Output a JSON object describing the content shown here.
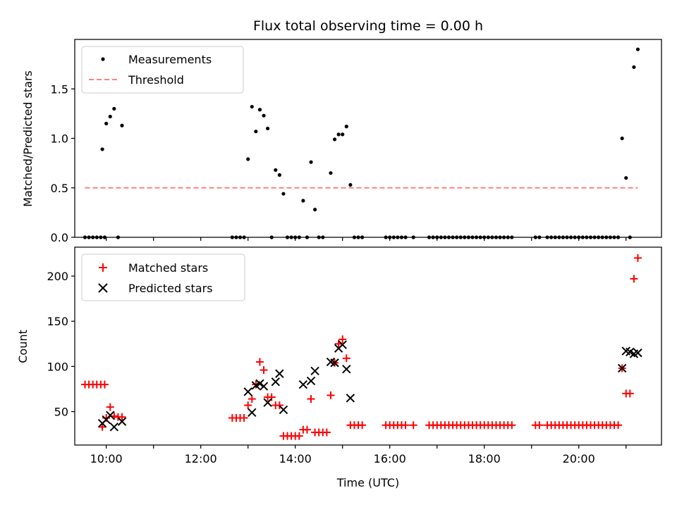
{
  "chart_data": [
    {
      "type": "scatter",
      "title": "Flux total observing time = 0.00 h",
      "ylabel": "Matched/Predicted stars",
      "xlim": [
        "09:20",
        "21:45"
      ],
      "ylim": [
        0,
        2.0
      ],
      "y_ticks": [
        "0.0",
        "0.5",
        "1.0",
        "1.5"
      ],
      "legend_position": "upper-left",
      "grid": false,
      "series": [
        {
          "name": "Measurements",
          "marker": "dot",
          "color": "#000000",
          "points": [
            [
              "09:33",
              0
            ],
            [
              "09:38",
              0
            ],
            [
              "09:43",
              0
            ],
            [
              "09:48",
              0
            ],
            [
              "09:53",
              0
            ],
            [
              "09:58",
              0
            ],
            [
              "09:55",
              0.89
            ],
            [
              "10:00",
              1.15
            ],
            [
              "10:05",
              1.22
            ],
            [
              "10:10",
              1.3
            ],
            [
              "10:15",
              0
            ],
            [
              "10:20",
              1.13
            ],
            [
              "12:40",
              0
            ],
            [
              "12:45",
              0
            ],
            [
              "12:50",
              0
            ],
            [
              "12:55",
              0
            ],
            [
              "13:00",
              0.79
            ],
            [
              "13:05",
              1.32
            ],
            [
              "13:10",
              1.07
            ],
            [
              "13:15",
              1.29
            ],
            [
              "13:20",
              1.23
            ],
            [
              "13:25",
              1.1
            ],
            [
              "13:30",
              0
            ],
            [
              "13:35",
              0.68
            ],
            [
              "13:40",
              0.63
            ],
            [
              "13:45",
              0.44
            ],
            [
              "13:50",
              0
            ],
            [
              "13:55",
              0
            ],
            [
              "14:00",
              0
            ],
            [
              "14:05",
              0
            ],
            [
              "14:10",
              0.37
            ],
            [
              "14:15",
              0
            ],
            [
              "14:20",
              0.76
            ],
            [
              "14:25",
              0.28
            ],
            [
              "14:30",
              0
            ],
            [
              "14:35",
              0
            ],
            [
              "14:45",
              0.65
            ],
            [
              "14:50",
              0.99
            ],
            [
              "14:55",
              1.04
            ],
            [
              "15:00",
              1.04
            ],
            [
              "15:05",
              1.12
            ],
            [
              "15:10",
              0.53
            ],
            [
              "15:15",
              0
            ],
            [
              "15:20",
              0
            ],
            [
              "15:25",
              0
            ],
            [
              "15:55",
              0
            ],
            [
              "16:00",
              0
            ],
            [
              "16:05",
              0
            ],
            [
              "16:10",
              0
            ],
            [
              "16:15",
              0
            ],
            [
              "16:20",
              0
            ],
            [
              "16:30",
              0
            ],
            [
              "16:50",
              0
            ],
            [
              "16:55",
              0
            ],
            [
              "17:00",
              0
            ],
            [
              "17:05",
              0
            ],
            [
              "17:10",
              0
            ],
            [
              "17:15",
              0
            ],
            [
              "17:20",
              0
            ],
            [
              "17:25",
              0
            ],
            [
              "17:30",
              0
            ],
            [
              "17:35",
              0
            ],
            [
              "17:40",
              0
            ],
            [
              "17:45",
              0
            ],
            [
              "17:50",
              0
            ],
            [
              "17:55",
              0
            ],
            [
              "18:00",
              0
            ],
            [
              "18:05",
              0
            ],
            [
              "18:10",
              0
            ],
            [
              "18:15",
              0
            ],
            [
              "18:20",
              0
            ],
            [
              "18:25",
              0
            ],
            [
              "18:30",
              0
            ],
            [
              "18:35",
              0
            ],
            [
              "19:05",
              0
            ],
            [
              "19:10",
              0
            ],
            [
              "19:20",
              0
            ],
            [
              "19:25",
              0
            ],
            [
              "19:30",
              0
            ],
            [
              "19:35",
              0
            ],
            [
              "19:40",
              0
            ],
            [
              "19:45",
              0
            ],
            [
              "19:50",
              0
            ],
            [
              "19:55",
              0
            ],
            [
              "20:00",
              0
            ],
            [
              "20:05",
              0
            ],
            [
              "20:10",
              0
            ],
            [
              "20:15",
              0
            ],
            [
              "20:20",
              0
            ],
            [
              "20:25",
              0
            ],
            [
              "20:30",
              0
            ],
            [
              "20:35",
              0
            ],
            [
              "20:40",
              0
            ],
            [
              "20:45",
              0
            ],
            [
              "20:50",
              0
            ],
            [
              "20:55",
              1.0
            ],
            [
              "21:00",
              0.6
            ],
            [
              "21:05",
              0
            ],
            [
              "21:10",
              1.72
            ],
            [
              "21:15",
              1.9
            ]
          ]
        },
        {
          "name": "Threshold",
          "marker": "dashed-line",
          "color": "#ff8080",
          "points": [
            [
              "09:33",
              0.5
            ],
            [
              "21:15",
              0.5
            ]
          ]
        }
      ]
    },
    {
      "type": "scatter",
      "xlabel": "Time (UTC)",
      "ylabel": "Count",
      "xlim": [
        "09:20",
        "21:45"
      ],
      "ylim": [
        13,
        232
      ],
      "x_ticks": [
        "10:00",
        "12:00",
        "14:00",
        "16:00",
        "18:00",
        "20:00"
      ],
      "y_ticks": [
        "50",
        "100",
        "150",
        "200"
      ],
      "legend_position": "upper-left",
      "grid": false,
      "series": [
        {
          "name": "Matched stars",
          "marker": "plus",
          "color": "#ff0000",
          "points": [
            [
              "09:33",
              80
            ],
            [
              "09:38",
              80
            ],
            [
              "09:43",
              80
            ],
            [
              "09:48",
              80
            ],
            [
              "09:53",
              80
            ],
            [
              "09:58",
              80
            ],
            [
              "09:55",
              33
            ],
            [
              "10:00",
              43
            ],
            [
              "10:05",
              55
            ],
            [
              "10:10",
              45
            ],
            [
              "10:15",
              44
            ],
            [
              "10:20",
              44
            ],
            [
              "12:40",
              43
            ],
            [
              "12:45",
              43
            ],
            [
              "12:50",
              43
            ],
            [
              "12:55",
              43
            ],
            [
              "13:00",
              57
            ],
            [
              "13:05",
              64
            ],
            [
              "13:10",
              80
            ],
            [
              "13:15",
              105
            ],
            [
              "13:20",
              96
            ],
            [
              "13:25",
              66
            ],
            [
              "13:30",
              66
            ],
            [
              "13:35",
              57
            ],
            [
              "13:40",
              57
            ],
            [
              "13:45",
              23
            ],
            [
              "13:50",
              23
            ],
            [
              "13:55",
              23
            ],
            [
              "14:00",
              23
            ],
            [
              "14:05",
              23
            ],
            [
              "14:10",
              30
            ],
            [
              "14:15",
              30
            ],
            [
              "14:20",
              64
            ],
            [
              "14:25",
              27
            ],
            [
              "14:30",
              27
            ],
            [
              "14:35",
              27
            ],
            [
              "14:40",
              27
            ],
            [
              "14:45",
              68
            ],
            [
              "14:50",
              104
            ],
            [
              "14:55",
              125
            ],
            [
              "15:00",
              130
            ],
            [
              "15:05",
              109
            ],
            [
              "15:10",
              35
            ],
            [
              "15:15",
              35
            ],
            [
              "15:20",
              35
            ],
            [
              "15:25",
              35
            ],
            [
              "15:55",
              35
            ],
            [
              "16:00",
              35
            ],
            [
              "16:05",
              35
            ],
            [
              "16:10",
              35
            ],
            [
              "16:15",
              35
            ],
            [
              "16:20",
              35
            ],
            [
              "16:30",
              35
            ],
            [
              "16:50",
              35
            ],
            [
              "16:55",
              35
            ],
            [
              "17:00",
              35
            ],
            [
              "17:05",
              35
            ],
            [
              "17:10",
              35
            ],
            [
              "17:15",
              35
            ],
            [
              "17:20",
              35
            ],
            [
              "17:25",
              35
            ],
            [
              "17:30",
              35
            ],
            [
              "17:35",
              35
            ],
            [
              "17:40",
              35
            ],
            [
              "17:45",
              35
            ],
            [
              "17:50",
              35
            ],
            [
              "17:55",
              35
            ],
            [
              "18:00",
              35
            ],
            [
              "18:05",
              35
            ],
            [
              "18:10",
              35
            ],
            [
              "18:15",
              35
            ],
            [
              "18:20",
              35
            ],
            [
              "18:25",
              35
            ],
            [
              "18:30",
              35
            ],
            [
              "18:35",
              35
            ],
            [
              "19:05",
              35
            ],
            [
              "19:10",
              35
            ],
            [
              "19:20",
              35
            ],
            [
              "19:25",
              35
            ],
            [
              "19:30",
              35
            ],
            [
              "19:35",
              35
            ],
            [
              "19:40",
              35
            ],
            [
              "19:45",
              35
            ],
            [
              "19:50",
              35
            ],
            [
              "19:55",
              35
            ],
            [
              "20:00",
              35
            ],
            [
              "20:05",
              35
            ],
            [
              "20:10",
              35
            ],
            [
              "20:15",
              35
            ],
            [
              "20:20",
              35
            ],
            [
              "20:25",
              35
            ],
            [
              "20:30",
              35
            ],
            [
              "20:35",
              35
            ],
            [
              "20:40",
              35
            ],
            [
              "20:45",
              35
            ],
            [
              "20:50",
              35
            ],
            [
              "20:55",
              98
            ],
            [
              "21:00",
              70
            ],
            [
              "21:05",
              70
            ],
            [
              "21:10",
              197
            ],
            [
              "21:15",
              220
            ]
          ]
        },
        {
          "name": "Predicted stars",
          "marker": "x",
          "color": "#000000",
          "points": [
            [
              "09:55",
              37
            ],
            [
              "10:00",
              41
            ],
            [
              "10:05",
              46
            ],
            [
              "10:10",
              33
            ],
            [
              "10:20",
              39
            ],
            [
              "13:00",
              72
            ],
            [
              "13:05",
              49
            ],
            [
              "13:10",
              79
            ],
            [
              "13:15",
              81
            ],
            [
              "13:20",
              78
            ],
            [
              "13:25",
              60
            ],
            [
              "13:35",
              83
            ],
            [
              "13:40",
              92
            ],
            [
              "13:45",
              52
            ],
            [
              "14:10",
              80
            ],
            [
              "14:20",
              84
            ],
            [
              "14:25",
              95
            ],
            [
              "14:45",
              105
            ],
            [
              "14:50",
              104
            ],
            [
              "14:55",
              120
            ],
            [
              "15:00",
              124
            ],
            [
              "15:05",
              97
            ],
            [
              "15:10",
              65
            ],
            [
              "20:55",
              98
            ],
            [
              "21:00",
              117
            ],
            [
              "21:05",
              116
            ],
            [
              "21:10",
              114
            ],
            [
              "21:15",
              115
            ]
          ]
        }
      ]
    }
  ]
}
